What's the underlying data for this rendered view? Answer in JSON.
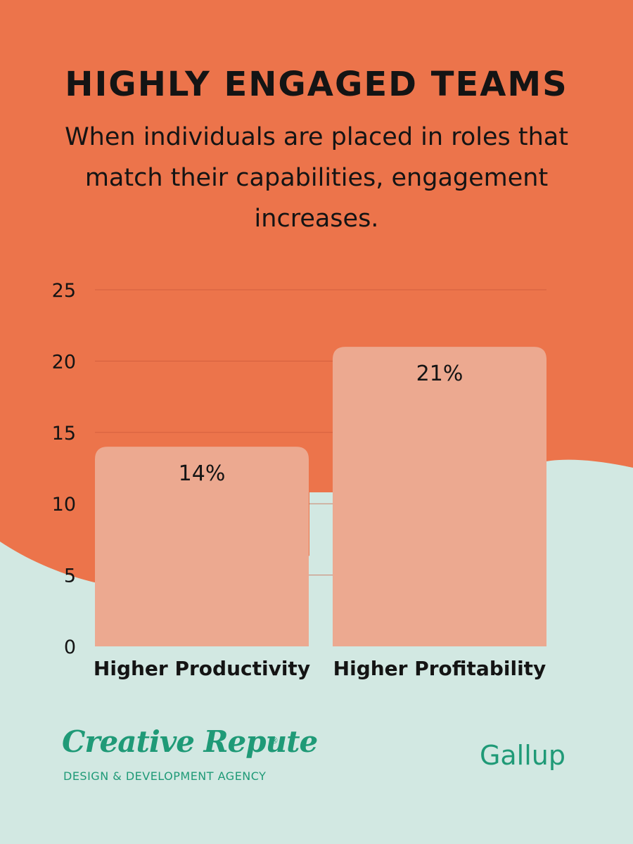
{
  "header": {
    "title": "HIGHLY ENGAGED TEAMS",
    "subtitle": "When individuals are placed in roles that match their capabilities, engagement increases."
  },
  "colors": {
    "top_background": "#ec744b",
    "bottom_background": "#d2e8e2",
    "bar": "#eca990",
    "gridline": "#c9583a",
    "brand": "#1f9a77"
  },
  "chart_data": {
    "type": "bar",
    "categories": [
      "Higher Productivity",
      "Higher Profitability"
    ],
    "values": [
      14,
      21
    ],
    "data_labels": [
      "14%",
      "21%"
    ],
    "ylim": [
      0,
      25
    ],
    "yticks": [
      0,
      5,
      10,
      15,
      20,
      25
    ],
    "grid": true,
    "xlabel": "",
    "ylabel": ""
  },
  "footer": {
    "logo_text": "Creative Repute",
    "logo_registered": "®",
    "logo_tagline": "DESIGN & DEVELOPMENT AGENCY",
    "source": "Gallup"
  }
}
